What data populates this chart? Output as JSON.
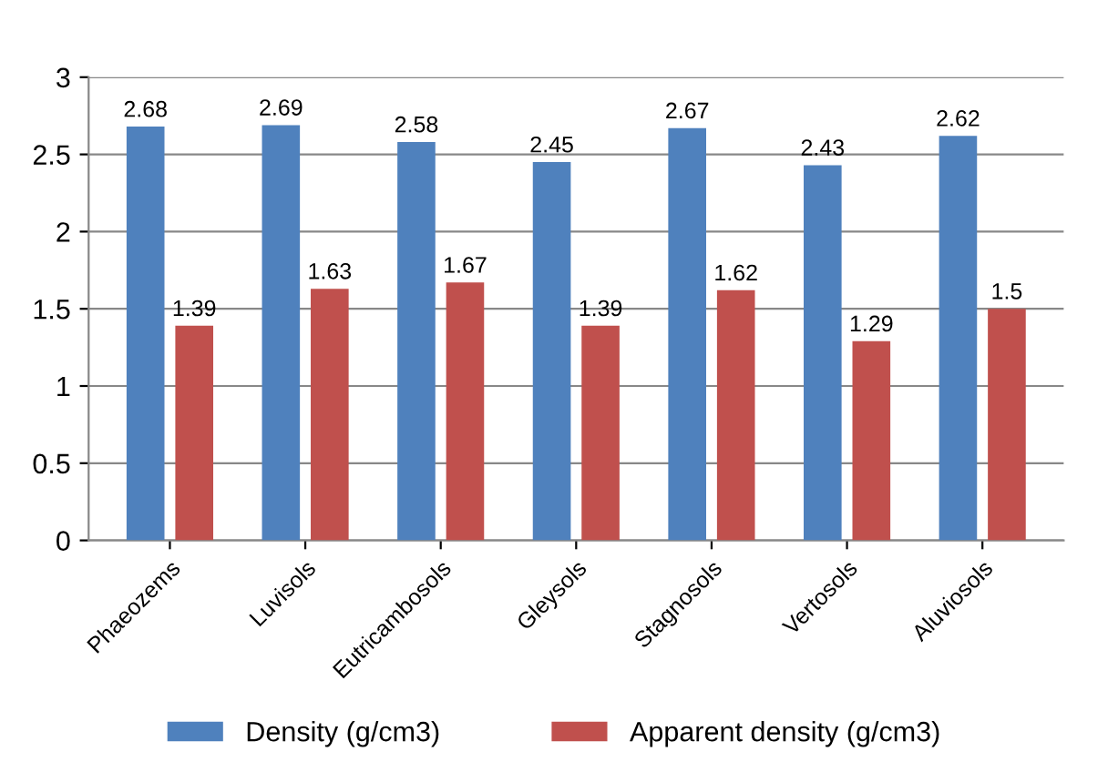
{
  "chart_data": {
    "type": "bar",
    "categories": [
      "Phaeozems",
      "Luvisols",
      "Eutricambosols",
      "Gleysols",
      "Stagnosols",
      "Vertosols",
      "Aluviosols"
    ],
    "series": [
      {
        "name": "Density (g/cm3)",
        "color": "#4f81bd",
        "values": [
          2.68,
          2.69,
          2.58,
          2.45,
          2.67,
          2.43,
          2.62
        ]
      },
      {
        "name": "Apparent density (g/cm3)",
        "color": "#c0504d",
        "values": [
          1.39,
          1.63,
          1.67,
          1.39,
          1.62,
          1.29,
          1.5
        ]
      }
    ],
    "ylim": [
      0,
      3
    ],
    "yticks": [
      0,
      0.5,
      1,
      1.5,
      2,
      2.5,
      3
    ],
    "grid": "y",
    "legend": "bottom",
    "data_labels": true
  }
}
